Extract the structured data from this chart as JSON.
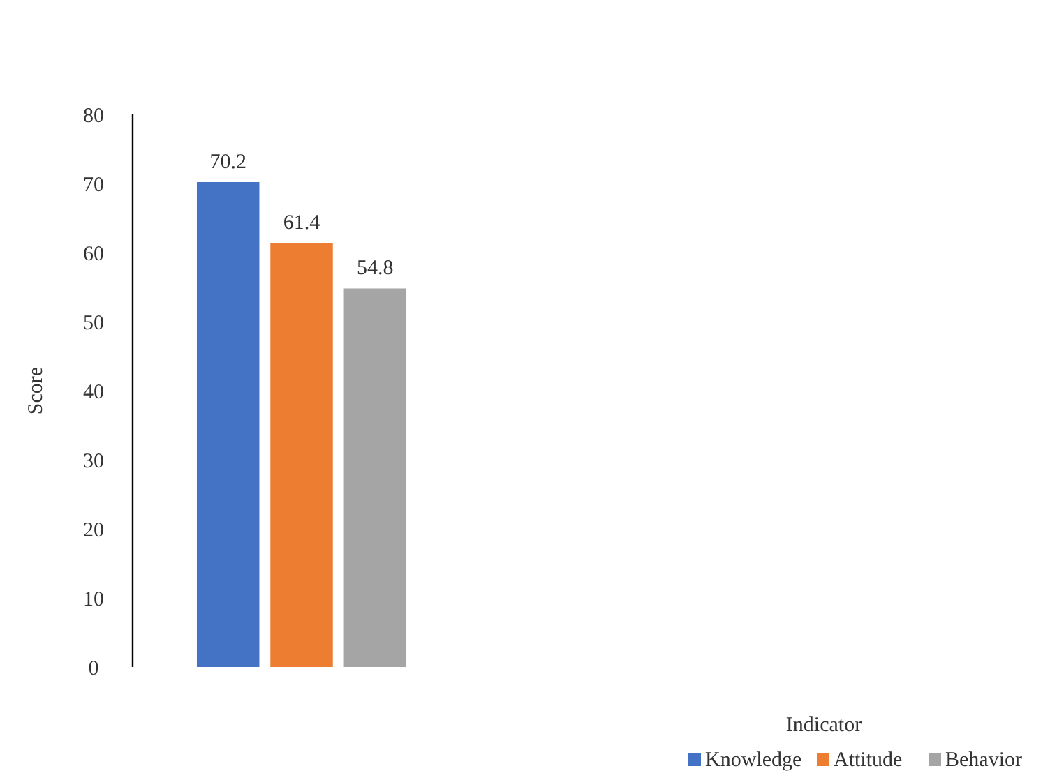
{
  "chart_data": {
    "type": "bar",
    "annotations": [
      "Indicator"
    ],
    "ylabel": "Score",
    "categories": [
      null
    ],
    "series": [
      {
        "name": "Knowledge",
        "color": "#4472c4",
        "values": [
          70.2
        ]
      },
      {
        "name": "Attitude",
        "color": "#ed7d31",
        "values": [
          61.4
        ]
      },
      {
        "name": "Behavior",
        "color": "#a5a5a5",
        "values": [
          54.8
        ]
      }
    ],
    "ylim": [
      0,
      80
    ],
    "yticks": [
      0,
      10,
      20,
      30,
      40,
      50,
      60,
      70,
      80
    ],
    "data_labels": true,
    "grid": false,
    "legend": "bottom right"
  }
}
